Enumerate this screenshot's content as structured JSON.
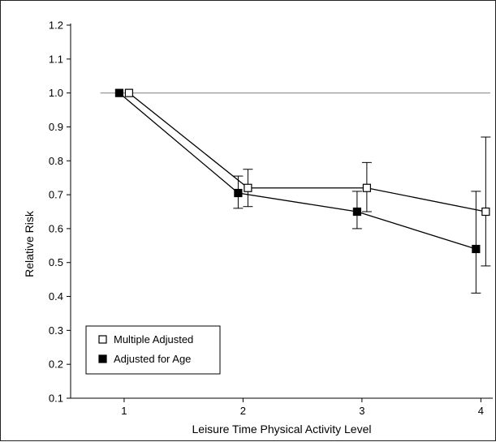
{
  "chart_data": {
    "type": "line",
    "title": "",
    "xlabel": "Leisure Time Physical Activity Level",
    "ylabel": "Relative Risk",
    "x_ticks": [
      "1",
      "2",
      "3",
      "4"
    ],
    "y_ticks": [
      "0.1",
      "0.2",
      "0.3",
      "0.4",
      "0.5",
      "0.6",
      "0.7",
      "0.8",
      "0.9",
      "1.0",
      "1.1",
      "1.2"
    ],
    "xlim": [
      0.55,
      4.1
    ],
    "ylim": [
      0.1,
      1.2
    ],
    "reference_line": 1.0,
    "grid": false,
    "legend_position": "bottom-left",
    "series": [
      {
        "name": "Multiple Adjusted",
        "marker": "open-square",
        "color": "#000000",
        "x": [
          1,
          2,
          3,
          4
        ],
        "values": [
          1.0,
          0.72,
          0.72,
          0.65
        ],
        "ci_low": [
          null,
          0.665,
          0.65,
          0.49
        ],
        "ci_high": [
          null,
          0.775,
          0.795,
          0.87
        ]
      },
      {
        "name": "Adjusted for Age",
        "marker": "filled-square",
        "color": "#000000",
        "x": [
          1,
          2,
          3,
          4
        ],
        "values": [
          1.0,
          0.705,
          0.65,
          0.54
        ],
        "ci_low": [
          null,
          0.66,
          0.6,
          0.41
        ],
        "ci_high": [
          null,
          0.755,
          0.71,
          0.71
        ]
      }
    ]
  }
}
